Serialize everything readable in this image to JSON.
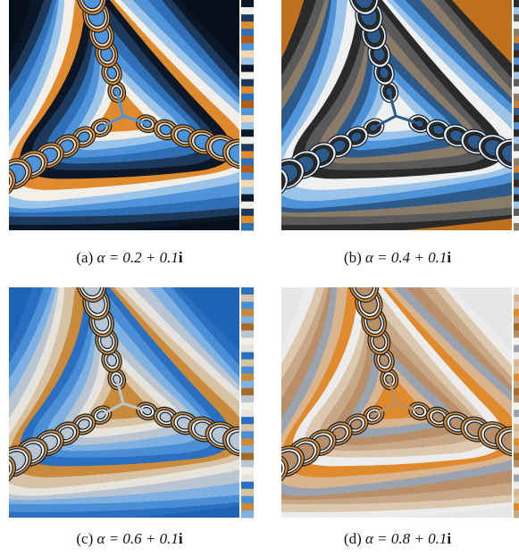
{
  "figures": [
    {
      "label": "(a)",
      "expression": "α = 0.2 + 0.1",
      "imaginary": "i"
    },
    {
      "label": "(b)",
      "expression": "α = 0.4 + 0.1",
      "imaginary": "i"
    },
    {
      "label": "(c)",
      "expression": "α = 0.6 + 0.1",
      "imaginary": "i"
    },
    {
      "label": "(d)",
      "expression": "α = 0.8 + 0.1",
      "imaginary": "i"
    }
  ]
}
